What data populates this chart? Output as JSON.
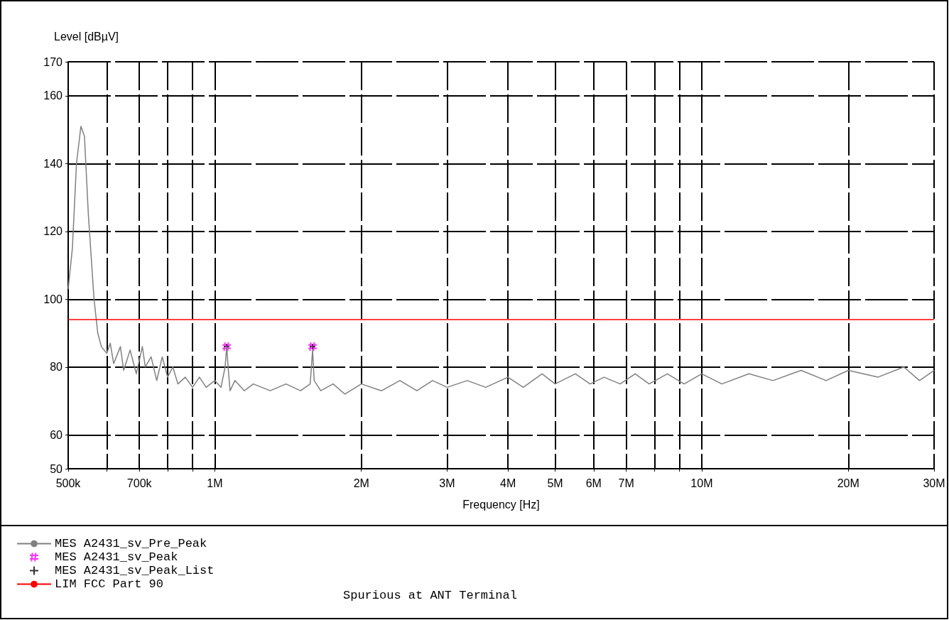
{
  "chart_data": {
    "type": "line",
    "xlabel": "Frequency [Hz]",
    "ylabel": "Level [dBµV]",
    "log": "x",
    "grid": true,
    "legend": "bottom left",
    "xlim": [
      500000,
      30000000
    ],
    "xticks": [
      {
        "value": 500000,
        "label": "500k"
      },
      {
        "value": 600000,
        "label": null
      },
      {
        "value": 700000,
        "label": "700k"
      },
      {
        "value": 800000,
        "label": null
      },
      {
        "value": 900000,
        "label": null
      },
      {
        "value": 1000000,
        "label": "1M"
      },
      {
        "value": 2000000,
        "label": "2M"
      },
      {
        "value": 3000000,
        "label": "3M"
      },
      {
        "value": 4000000,
        "label": "4M"
      },
      {
        "value": 5000000,
        "label": "5M"
      },
      {
        "value": 6000000,
        "label": "6M"
      },
      {
        "value": 7000000,
        "label": "7M"
      },
      {
        "value": 8000000,
        "label": null
      },
      {
        "value": 9000000,
        "label": null
      },
      {
        "value": 10000000,
        "label": "10M"
      },
      {
        "value": 20000000,
        "label": "20M"
      },
      {
        "value": 30000000,
        "label": "30M"
      }
    ],
    "ylim": [
      50,
      170
    ],
    "yticks": [
      50,
      60,
      80,
      100,
      120,
      140,
      160,
      170
    ],
    "annotations": [
      "Spurious at ANT Terminal"
    ],
    "series": [
      {
        "name": "MES A2431_sv_Pre_Peak",
        "color": "#808080",
        "x": [
          500000,
          510000,
          520000,
          531000,
          540000,
          550000,
          565000,
          575000,
          585000,
          600000,
          610000,
          620000,
          640000,
          650000,
          670000,
          690000,
          710000,
          720000,
          740000,
          760000,
          780000,
          800000,
          820000,
          840000,
          870000,
          900000,
          930000,
          960000,
          1000000,
          1030000,
          1050000,
          1058000,
          1065000,
          1075000,
          1100000,
          1150000,
          1200000,
          1300000,
          1400000,
          1500000,
          1570000,
          1588000,
          1600000,
          1650000,
          1750000,
          1850000,
          2000000,
          2200000,
          2400000,
          2600000,
          2800000,
          3000000,
          3300000,
          3600000,
          4000000,
          4300000,
          4700000,
          5000000,
          5500000,
          5900000,
          6300000,
          6800000,
          7300000,
          7800000,
          8500000,
          9200000,
          10000000,
          11000000,
          12500000,
          14000000,
          16000000,
          18000000,
          20000000,
          23000000,
          26000000,
          28000000,
          30000000
        ],
        "values": [
          103,
          115,
          140,
          151,
          148,
          125,
          100,
          90,
          86,
          84,
          87,
          81,
          86,
          79,
          85,
          78,
          86,
          80,
          83,
          76,
          83,
          77,
          80,
          75,
          77,
          74,
          77,
          74,
          76,
          74,
          80,
          86,
          80,
          73,
          76,
          73,
          75,
          73,
          75,
          73,
          75,
          85,
          76,
          73,
          75,
          72,
          75,
          73,
          76,
          73,
          76,
          74,
          76,
          74,
          77,
          74,
          78,
          75,
          78,
          75,
          77,
          75,
          78,
          75,
          78,
          75,
          78,
          75,
          78,
          76,
          79,
          76,
          79,
          77,
          80,
          76,
          79
        ]
      },
      {
        "name": "MES A2431_sv_Peak",
        "type": "scatter",
        "color": "#ff00ff",
        "x": [
          1058000,
          1588000
        ],
        "values": [
          86,
          86
        ]
      },
      {
        "name": "MES A2431_sv_Peak_List",
        "type": "scatter",
        "marker": "cross",
        "color": "#000000",
        "x": [
          1058000,
          1588000
        ],
        "values": [
          86,
          86
        ]
      },
      {
        "name": "LIM FCC Part 90",
        "color": "#ff0000",
        "x": [
          500000,
          30000000
        ],
        "values": [
          94,
          94
        ]
      }
    ]
  }
}
